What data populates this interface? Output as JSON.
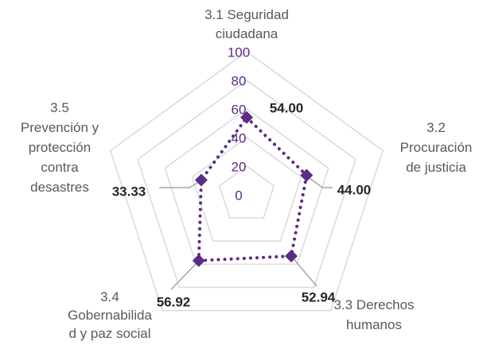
{
  "chart_data": {
    "type": "radar",
    "categories": [
      "3.1 Seguridad\nciudadana",
      "3.2\nProcuración\nde justicia",
      "3.3 Derechos\nhumanos",
      "3.4\nGobernabilida\nd y paz social",
      "3.5\nPrevención y\nprotección\ncontra\ndesastres"
    ],
    "values": [
      54,
      44,
      52.94,
      56.92,
      33.33
    ],
    "value_labels": [
      "54.00",
      "44.00",
      "52.94",
      "56.92",
      "33.33"
    ],
    "color": "#5b2c83",
    "rlim": [
      0,
      100
    ],
    "rticks": [
      0,
      20,
      40,
      60,
      80,
      100
    ],
    "grid": true
  }
}
